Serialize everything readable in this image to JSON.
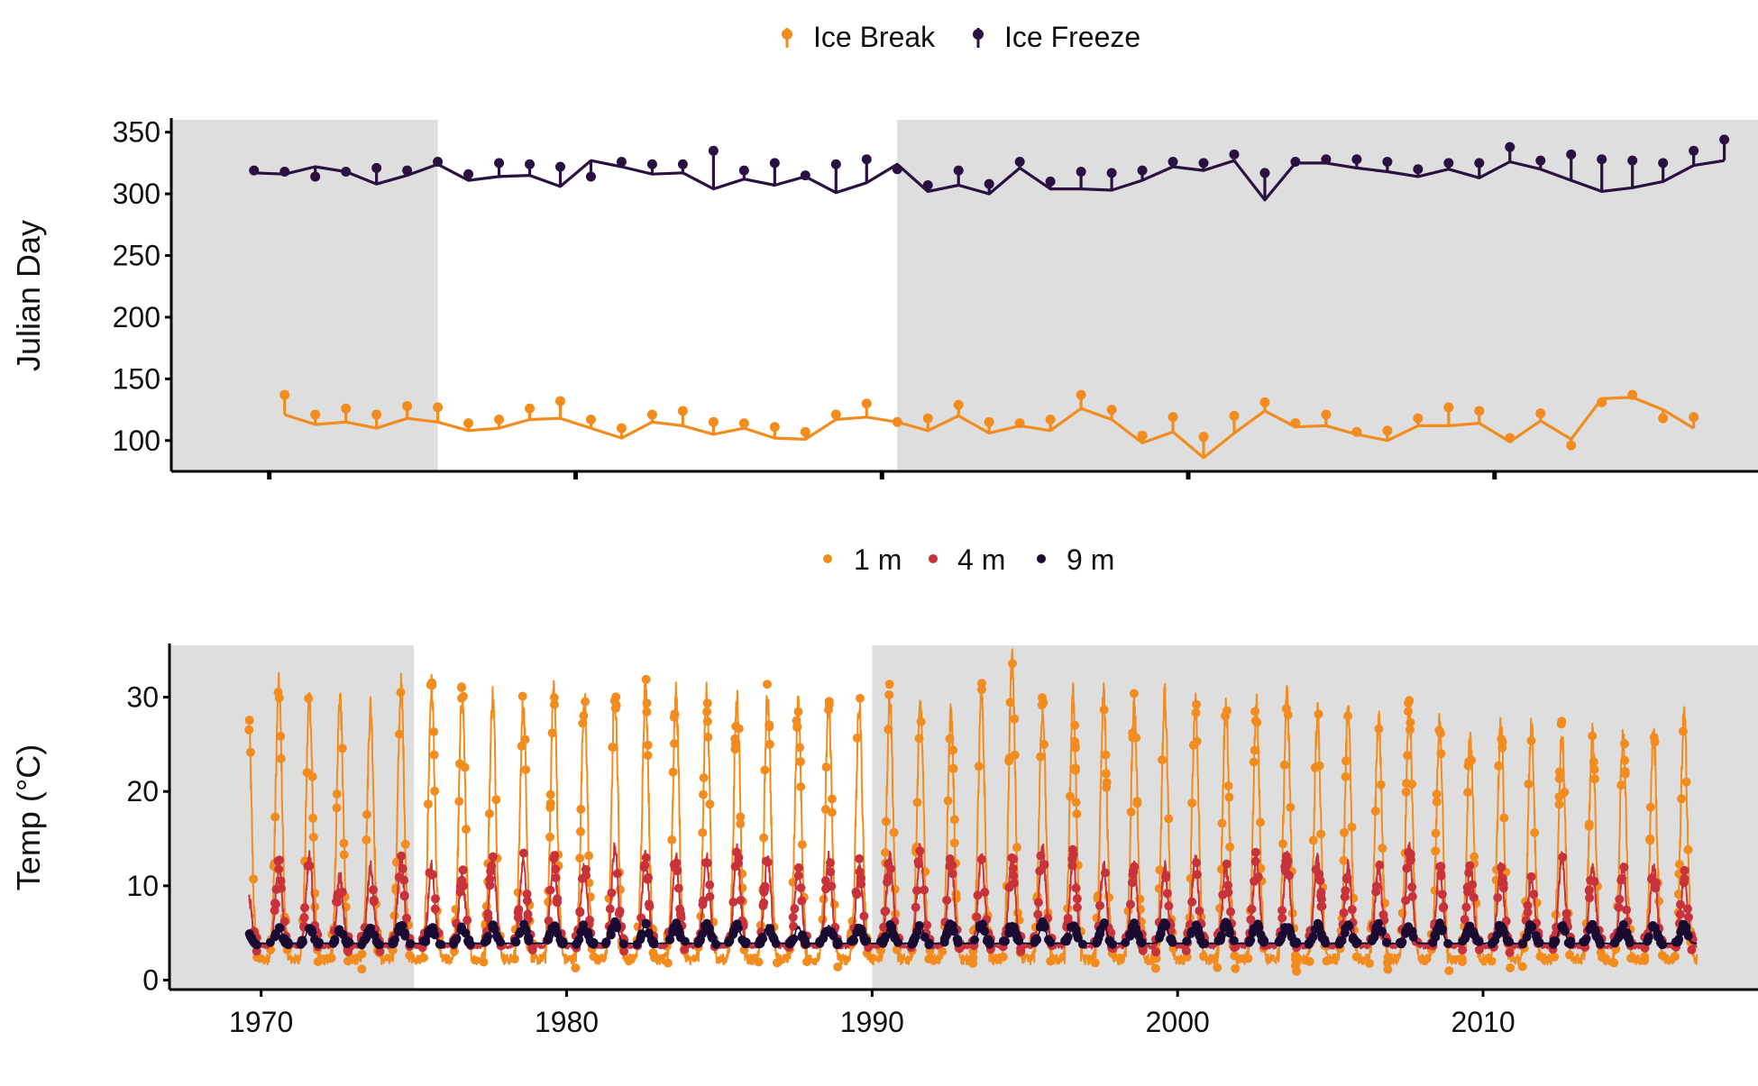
{
  "chart_data": [
    {
      "type": "line",
      "ylabel": "Julian Day",
      "ylim": [
        75,
        360
      ],
      "xlim": [
        1966.8,
        2018.6
      ],
      "yticks": [
        100,
        150,
        200,
        250,
        300,
        350
      ],
      "xticks": [
        1970,
        1980,
        1990,
        2000,
        2010
      ],
      "show_x_tick_labels": false,
      "grid": false,
      "legend_position": "top",
      "shaded_periods": [
        [
          1966.8,
          1975.5
        ],
        [
          1990.5,
          2018.6
        ]
      ],
      "series": [
        {
          "name": "Ice Break",
          "color": "#F28C1E",
          "line": [
            [
              1970.5,
              121
            ],
            [
              1971.5,
              113
            ],
            [
              1972.5,
              115
            ],
            [
              1973.5,
              110
            ],
            [
              1974.5,
              118
            ],
            [
              1975.5,
              115
            ],
            [
              1976.5,
              108
            ],
            [
              1977.5,
              110
            ],
            [
              1978.5,
              117
            ],
            [
              1979.5,
              118
            ],
            [
              1980.5,
              110
            ],
            [
              1981.5,
              102
            ],
            [
              1982.5,
              115
            ],
            [
              1983.5,
              112
            ],
            [
              1984.5,
              105
            ],
            [
              1985.5,
              110
            ],
            [
              1986.5,
              102
            ],
            [
              1987.5,
              101
            ],
            [
              1988.5,
              117
            ],
            [
              1989.5,
              119
            ],
            [
              1990.5,
              115
            ],
            [
              1991.5,
              108
            ],
            [
              1992.5,
              120
            ],
            [
              1993.5,
              106
            ],
            [
              1994.5,
              112
            ],
            [
              1995.5,
              108
            ],
            [
              1996.5,
              126
            ],
            [
              1997.5,
              117
            ],
            [
              1998.5,
              98
            ],
            [
              1999.5,
              107
            ],
            [
              2000.5,
              86
            ],
            [
              2001.5,
              106
            ],
            [
              2002.5,
              124
            ],
            [
              2003.5,
              111
            ],
            [
              2004.5,
              112
            ],
            [
              2005.5,
              105
            ],
            [
              2006.5,
              100
            ],
            [
              2007.5,
              112
            ],
            [
              2008.5,
              112
            ],
            [
              2009.5,
              114
            ],
            [
              2010.5,
              99
            ],
            [
              2011.5,
              116
            ],
            [
              2012.5,
              101
            ],
            [
              2013.5,
              134
            ],
            [
              2014.5,
              135
            ],
            [
              2015.5,
              125
            ],
            [
              2016.5,
              110
            ]
          ],
          "points": [
            [
              1970.5,
              137
            ],
            [
              1971.5,
              121
            ],
            [
              1972.5,
              126
            ],
            [
              1973.5,
              121
            ],
            [
              1974.5,
              128
            ],
            [
              1975.5,
              127
            ],
            [
              1976.5,
              114
            ],
            [
              1977.5,
              117
            ],
            [
              1978.5,
              126
            ],
            [
              1979.5,
              132
            ],
            [
              1980.5,
              117
            ],
            [
              1981.5,
              110
            ],
            [
              1982.5,
              121
            ],
            [
              1983.5,
              124
            ],
            [
              1984.5,
              115
            ],
            [
              1985.5,
              114
            ],
            [
              1986.5,
              111
            ],
            [
              1987.5,
              107
            ],
            [
              1988.5,
              121
            ],
            [
              1989.5,
              130
            ],
            [
              1990.5,
              115
            ],
            [
              1991.5,
              118
            ],
            [
              1992.5,
              129
            ],
            [
              1993.5,
              115
            ],
            [
              1994.5,
              114
            ],
            [
              1995.5,
              117
            ],
            [
              1996.5,
              137
            ],
            [
              1997.5,
              125
            ],
            [
              1998.5,
              104
            ],
            [
              1999.5,
              119
            ],
            [
              2000.5,
              103
            ],
            [
              2001.5,
              120
            ],
            [
              2002.5,
              131
            ],
            [
              2003.5,
              114
            ],
            [
              2004.5,
              121
            ],
            [
              2005.5,
              107
            ],
            [
              2006.5,
              108
            ],
            [
              2007.5,
              118
            ],
            [
              2008.5,
              127
            ],
            [
              2009.5,
              124
            ],
            [
              2010.5,
              102
            ],
            [
              2011.5,
              122
            ],
            [
              2012.5,
              96
            ],
            [
              2013.5,
              131
            ],
            [
              2014.5,
              137
            ],
            [
              2015.5,
              118
            ],
            [
              2016.5,
              119
            ]
          ]
        },
        {
          "name": "Ice Freeze",
          "color": "#2A1141",
          "line": [
            [
              1969.5,
              317
            ],
            [
              1970.5,
              316
            ],
            [
              1971.5,
              322
            ],
            [
              1972.5,
              318
            ],
            [
              1973.5,
              308
            ],
            [
              1974.5,
              315
            ],
            [
              1975.5,
              324
            ],
            [
              1976.5,
              311
            ],
            [
              1977.5,
              314
            ],
            [
              1978.5,
              315
            ],
            [
              1979.5,
              306
            ],
            [
              1980.5,
              327
            ],
            [
              1981.5,
              322
            ],
            [
              1982.5,
              316
            ],
            [
              1983.5,
              317
            ],
            [
              1984.5,
              304
            ],
            [
              1985.5,
              312
            ],
            [
              1986.5,
              307
            ],
            [
              1987.5,
              314
            ],
            [
              1988.5,
              301
            ],
            [
              1989.5,
              309
            ],
            [
              1990.5,
              324
            ],
            [
              1991.5,
              302
            ],
            [
              1992.5,
              307
            ],
            [
              1993.5,
              300
            ],
            [
              1994.5,
              321
            ],
            [
              1995.5,
              304
            ],
            [
              1996.5,
              304
            ],
            [
              1997.5,
              303
            ],
            [
              1998.5,
              311
            ],
            [
              1999.5,
              322
            ],
            [
              2000.5,
              319
            ],
            [
              2001.5,
              327
            ],
            [
              2002.5,
              295
            ],
            [
              2003.5,
              325
            ],
            [
              2004.5,
              325
            ],
            [
              2005.5,
              321
            ],
            [
              2006.5,
              318
            ],
            [
              2007.5,
              314
            ],
            [
              2008.5,
              320
            ],
            [
              2009.5,
              313
            ],
            [
              2010.5,
              326
            ],
            [
              2011.5,
              320
            ],
            [
              2012.5,
              311
            ],
            [
              2013.5,
              302
            ],
            [
              2014.5,
              305
            ],
            [
              2015.5,
              310
            ],
            [
              2016.5,
              323
            ],
            [
              2017.5,
              327
            ]
          ],
          "points": [
            [
              1969.5,
              319
            ],
            [
              1970.5,
              318
            ],
            [
              1971.5,
              314
            ],
            [
              1972.5,
              318
            ],
            [
              1973.5,
              321
            ],
            [
              1974.5,
              319
            ],
            [
              1975.5,
              326
            ],
            [
              1976.5,
              316
            ],
            [
              1977.5,
              325
            ],
            [
              1978.5,
              324
            ],
            [
              1979.5,
              322
            ],
            [
              1980.5,
              314
            ],
            [
              1981.5,
              326
            ],
            [
              1982.5,
              324
            ],
            [
              1983.5,
              324
            ],
            [
              1984.5,
              335
            ],
            [
              1985.5,
              319
            ],
            [
              1986.5,
              325
            ],
            [
              1987.5,
              315
            ],
            [
              1988.5,
              324
            ],
            [
              1989.5,
              328
            ],
            [
              1990.5,
              320
            ],
            [
              1991.5,
              307
            ],
            [
              1992.5,
              319
            ],
            [
              1993.5,
              308
            ],
            [
              1994.5,
              326
            ],
            [
              1995.5,
              310
            ],
            [
              1996.5,
              318
            ],
            [
              1997.5,
              317
            ],
            [
              1998.5,
              319
            ],
            [
              1999.5,
              326
            ],
            [
              2000.5,
              325
            ],
            [
              2001.5,
              332
            ],
            [
              2002.5,
              317
            ],
            [
              2003.5,
              326
            ],
            [
              2004.5,
              328
            ],
            [
              2005.5,
              328
            ],
            [
              2006.5,
              326
            ],
            [
              2007.5,
              320
            ],
            [
              2008.5,
              325
            ],
            [
              2009.5,
              325
            ],
            [
              2010.5,
              338
            ],
            [
              2011.5,
              327
            ],
            [
              2012.5,
              332
            ],
            [
              2013.5,
              328
            ],
            [
              2014.5,
              327
            ],
            [
              2015.5,
              325
            ],
            [
              2016.5,
              335
            ],
            [
              2017.5,
              344
            ]
          ]
        }
      ]
    },
    {
      "type": "line",
      "ylabel": "Temp (°C)",
      "ylim": [
        -1,
        35.5
      ],
      "xlim": [
        1967,
        2019
      ],
      "yticks": [
        0,
        10,
        20,
        30
      ],
      "xticks": [
        1970,
        1980,
        1990,
        2000,
        2010
      ],
      "grid": false,
      "legend_position": "top",
      "shaded_periods": [
        [
          1967,
          1975
        ],
        [
          1990,
          2019
        ]
      ],
      "x_range": [
        1969.6,
        2017
      ],
      "seasonal_pattern": "annual cycle; line traces the modelled temperature, points show observations",
      "series": [
        {
          "name": "1 m",
          "color": "#F28C1E",
          "winter_min_c": 2.2,
          "annual_peak_c": [
            28,
            31,
            30,
            30,
            29,
            31,
            31,
            30,
            30,
            29,
            31,
            30,
            30,
            31,
            30,
            30,
            30,
            30,
            29,
            29,
            29,
            30,
            29,
            28,
            30,
            34,
            29,
            30,
            30,
            29,
            30,
            29,
            29,
            29,
            30,
            28,
            28,
            28,
            29,
            27,
            26,
            27,
            27,
            26,
            26,
            26,
            26,
            28
          ]
        },
        {
          "name": "4 m",
          "color": "#C8323A",
          "winter_min_c": 3.6,
          "annual_peak_c": [
            9,
            12,
            13,
            11,
            12,
            13,
            12,
            11,
            13,
            13,
            13,
            12,
            14,
            13,
            13,
            13,
            14,
            13,
            12,
            13,
            12,
            13,
            14,
            13,
            13,
            13,
            14,
            13,
            12,
            12,
            12,
            13,
            12,
            13,
            13,
            13,
            12,
            12,
            14,
            12,
            12,
            12,
            11,
            13,
            12,
            12,
            12,
            11
          ]
        },
        {
          "name": "9 m",
          "color": "#1A0B33",
          "winter_min_c": 3.9,
          "annual_peak_c": [
            5,
            5.5,
            5.5,
            5.2,
            5.5,
            5.8,
            5.6,
            5.5,
            5.7,
            5.8,
            5.9,
            5.8,
            6.0,
            5.9,
            5.9,
            6.0,
            5.8,
            5.8,
            5.6,
            5.7,
            5.6,
            5.8,
            5.7,
            5.9,
            5.9,
            6.0,
            6.0,
            5.9,
            6.0,
            5.9,
            6.0,
            6.0,
            6.0,
            6.0,
            5.9,
            5.9,
            5.9,
            5.9,
            5.8,
            5.9,
            5.9,
            5.9,
            5.9,
            5.8,
            5.8,
            5.8,
            5.8,
            5.8
          ]
        }
      ]
    }
  ]
}
